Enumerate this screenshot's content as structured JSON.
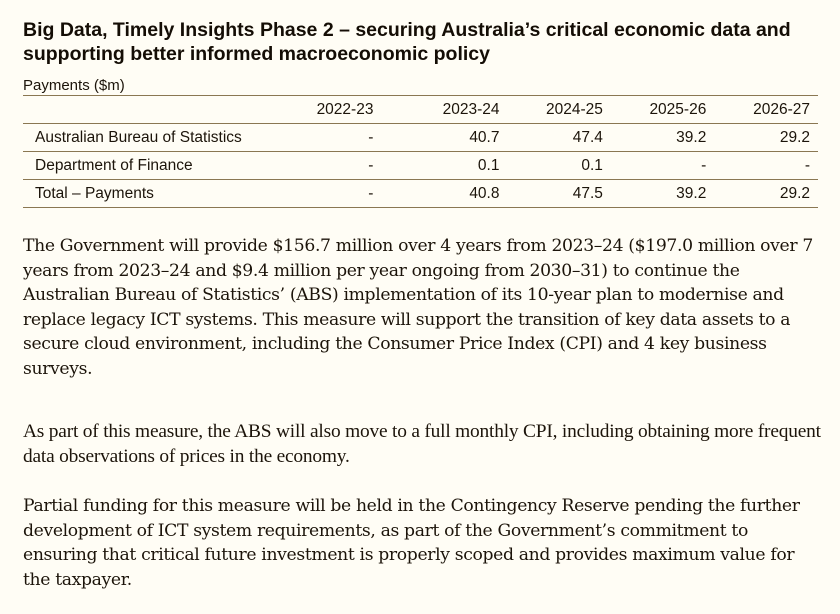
{
  "title": "Big Data, Timely Insights Phase 2 – securing Australia’s critical economic data and supporting better informed macroeconomic policy",
  "table": {
    "caption": "Payments ($m)",
    "columns": [
      "",
      "2022-23",
      "2023-24",
      "2024-25",
      "2025-26",
      "2026-27"
    ],
    "rows": [
      {
        "label": "Australian Bureau of Statistics",
        "values": [
          "-",
          "40.7",
          "47.4",
          "39.2",
          "29.2"
        ]
      },
      {
        "label": "Department of Finance",
        "values": [
          "-",
          "0.1",
          "0.1",
          "-",
          "-"
        ]
      },
      {
        "label": "Total – Payments",
        "values": [
          "-",
          "40.8",
          "47.5",
          "39.2",
          "29.2"
        ]
      }
    ]
  },
  "paragraphs": [
    "The Government will provide $156.7 million over 4 years from 2023–24 ($197.0 million over 7 years from 2023–24 and $9.4 million per year ongoing from 2030–31) to continue the Australian Bureau of Statistics’ (ABS) implementation of its 10-year plan to modernise and replace legacy ICT systems. This measure will support the transition of key data assets to a secure cloud environment, including the Consumer Price Index (CPI) and 4 key business surveys.",
    "As part of this measure, the ABS will also move to a full monthly CPI, including obtaining more frequent data observations of prices in the economy.",
    "Partial funding for this measure will be held in the Contingency Reserve pending the further development of ICT system requirements, as part of the Government’s commitment to ensuring that critical future investment is properly scoped and provides maximum value for the taxpayer."
  ]
}
